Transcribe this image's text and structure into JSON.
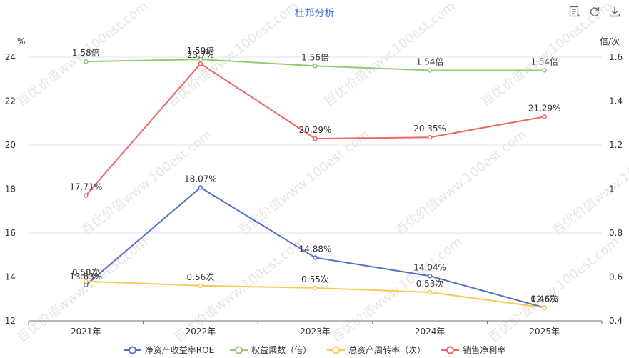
{
  "chart_data": {
    "type": "line",
    "title": "杜邦分析",
    "categories": [
      "2021年",
      "2022年",
      "2023年",
      "2024年",
      "2025年"
    ],
    "y_left": {
      "unit_label": "%",
      "min": 12,
      "max": 24,
      "ticks": [
        12,
        14,
        16,
        18,
        20,
        22,
        24
      ]
    },
    "y_right": {
      "unit_label": "倍/次",
      "min": 0.4,
      "max": 1.6,
      "ticks": [
        "0.4",
        "0.6",
        "0.8",
        "1",
        "1.2",
        "1.4",
        "1.6"
      ]
    },
    "series": [
      {
        "name": "净资产收益率ROE",
        "axis": "left",
        "color": "#5470c6",
        "values": [
          13.63,
          18.07,
          14.88,
          14.04,
          12.6
        ],
        "labels": [
          "13.63%",
          "18.07%",
          "14.88%",
          "14.04%",
          "12.6%"
        ]
      },
      {
        "name": "权益乘数（倍）",
        "axis": "right",
        "color": "#91cc75",
        "values": [
          1.58,
          1.59,
          1.56,
          1.54,
          1.54
        ],
        "labels": [
          "1.58倍",
          "1.59倍",
          "1.56倍",
          "1.54倍",
          "1.54倍"
        ]
      },
      {
        "name": "总资产周转率（次）",
        "axis": "right",
        "color": "#fac858",
        "values": [
          0.58,
          0.56,
          0.55,
          0.53,
          0.46
        ],
        "labels": [
          "0.58次",
          "0.56次",
          "0.55次",
          "0.53次",
          "0.46次"
        ]
      },
      {
        "name": "销售净利率",
        "axis": "left",
        "color": "#ee6666",
        "values": [
          17.71,
          23.7,
          20.29,
          20.35,
          21.29
        ],
        "labels": [
          "17.71%",
          "23.7%",
          "20.29%",
          "20.35%",
          "21.29%"
        ]
      }
    ],
    "grid": true,
    "legend_position": "bottom"
  },
  "watermark": "百优价值www.100est.com",
  "toolbox": {
    "items": [
      {
        "name": "data-view-icon"
      },
      {
        "name": "restore-icon"
      },
      {
        "name": "download-icon"
      }
    ]
  }
}
